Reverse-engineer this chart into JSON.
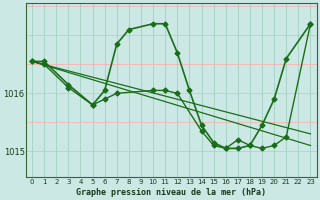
{
  "xlabel": "Graphe pression niveau de la mer (hPa)",
  "background_color": "#cce8e5",
  "plot_bg_color": "#cce8e5",
  "grid_color_major": "#99ccbb",
  "grid_color_minor": "#bbddd8",
  "line_color": "#1a6e1a",
  "xlim": [
    -0.5,
    23.5
  ],
  "ylim": [
    1014.55,
    1017.55
  ],
  "yticks": [
    1015,
    1016
  ],
  "xticks": [
    0,
    1,
    2,
    3,
    4,
    5,
    6,
    7,
    8,
    9,
    10,
    11,
    12,
    13,
    14,
    15,
    16,
    17,
    18,
    19,
    20,
    21,
    22,
    23
  ],
  "series": [
    {
      "x": [
        0,
        1,
        3,
        5,
        6,
        7,
        8,
        10,
        11,
        12,
        13,
        14,
        15,
        16,
        17,
        18,
        19,
        20,
        21,
        23
      ],
      "y": [
        1016.55,
        1016.55,
        1016.15,
        1015.8,
        1016.05,
        1016.85,
        1017.1,
        1017.2,
        1017.2,
        1016.7,
        1016.05,
        1015.45,
        1015.15,
        1015.05,
        1015.05,
        1015.1,
        1015.45,
        1015.9,
        1016.6,
        1017.2
      ],
      "lw": 1.2,
      "marker": "D",
      "ms": 2.5
    },
    {
      "x": [
        0,
        23
      ],
      "y": [
        1016.55,
        1015.3
      ],
      "lw": 0.9,
      "marker": null,
      "ms": 0
    },
    {
      "x": [
        0,
        23
      ],
      "y": [
        1016.55,
        1015.1
      ],
      "lw": 0.9,
      "marker": null,
      "ms": 0
    },
    {
      "x": [
        0,
        1,
        3,
        5,
        6,
        7,
        10,
        11,
        12,
        14,
        15,
        16,
        17,
        18,
        19,
        20,
        21,
        23
      ],
      "y": [
        1016.55,
        1016.5,
        1016.1,
        1015.8,
        1015.9,
        1016.0,
        1016.05,
        1016.05,
        1016.0,
        1015.35,
        1015.1,
        1015.05,
        1015.2,
        1015.1,
        1015.05,
        1015.1,
        1015.25,
        1017.2
      ],
      "lw": 1.0,
      "marker": "D",
      "ms": 2.5
    }
  ]
}
